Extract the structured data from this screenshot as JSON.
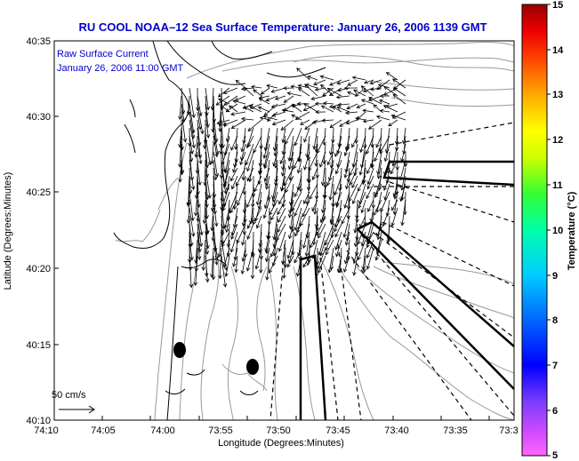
{
  "title": "RU COOL  NOAA–12  Sea Surface Temperature:  January 26, 2006 1139 GMT",
  "annotation": {
    "line1": "Raw Surface Current",
    "line2": "January 26, 2006 11:00 GMT"
  },
  "scale": {
    "label": "50 cm/s"
  },
  "axes": {
    "xlabel": "Longitude (Degrees:Minutes)",
    "ylabel": "Latitude (Degrees:Minutes)",
    "xticks": [
      "74:10",
      "74:05",
      "74:00",
      "73:55",
      "73:50",
      "73:45",
      "73:40",
      "73:35",
      "73:3"
    ],
    "yticks": [
      "40:35",
      "40:30",
      "40:25",
      "40:20",
      "40:15",
      "40:10"
    ]
  },
  "colorbar": {
    "label": "Temperature (°C)",
    "ticks": [
      "15",
      "14",
      "13",
      "12",
      "11",
      "10",
      "9",
      "8",
      "7",
      "6",
      "5"
    ],
    "range": [
      5,
      15
    ]
  },
  "colors": {
    "title": "#0000cc",
    "frame": "#000000",
    "contour": "#999999"
  }
}
